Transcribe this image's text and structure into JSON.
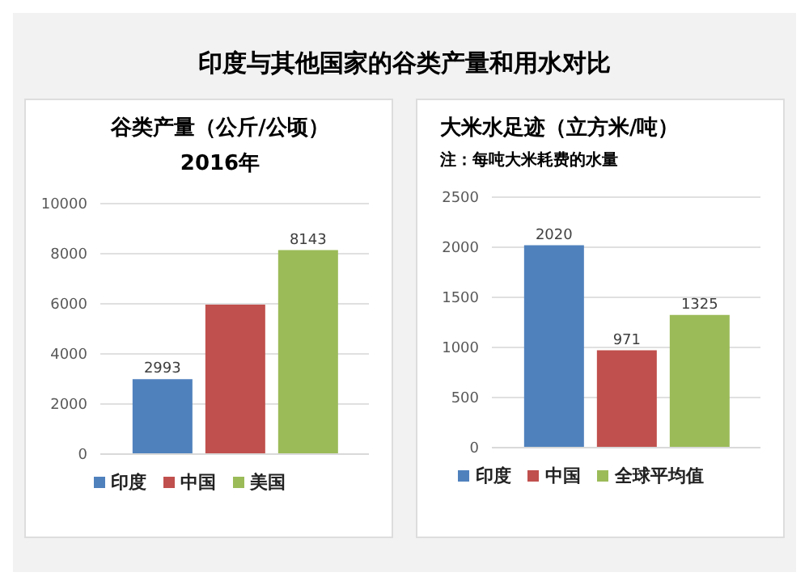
{
  "chart_data": [
    {
      "type": "other",
      "title": "印度与其他国家的谷类产量和用水对比"
    },
    {
      "type": "bar",
      "title": "谷类产量（公斤/公顷）",
      "subtitle": "2016年",
      "categories": [
        null
      ],
      "series": [
        {
          "name": "印度",
          "color": "#4f81bd",
          "values": [
            2993
          ],
          "value_labels": [
            "2993"
          ]
        },
        {
          "name": "中国",
          "color": "#c0504d",
          "values": [
            5970
          ],
          "value_labels": [
            null
          ]
        },
        {
          "name": "美国",
          "color": "#9bbb59",
          "values": [
            8143
          ],
          "value_labels": [
            "8143"
          ]
        }
      ],
      "ylim": [
        0,
        10000
      ],
      "yticks": [
        0,
        2000,
        4000,
        6000,
        8000,
        10000
      ],
      "grid": "y",
      "legend": "bottom"
    },
    {
      "type": "bar",
      "title": "大米水足迹（立方米/吨）",
      "subtitle": "注：每吨大米耗费的水量",
      "categories": [
        null
      ],
      "series": [
        {
          "name": "印度",
          "color": "#4f81bd",
          "values": [
            2020
          ]
        },
        {
          "name": "中国",
          "color": "#c0504d",
          "values": [
            971
          ]
        },
        {
          "name": "全球平均值",
          "color": "#9bbb59",
          "values": [
            1325
          ]
        }
      ],
      "data_labels": true,
      "ylim": [
        0,
        2500
      ],
      "yticks": [
        0,
        500,
        1000,
        1500,
        2000,
        2500
      ],
      "grid": "y",
      "legend": "bottom"
    }
  ]
}
